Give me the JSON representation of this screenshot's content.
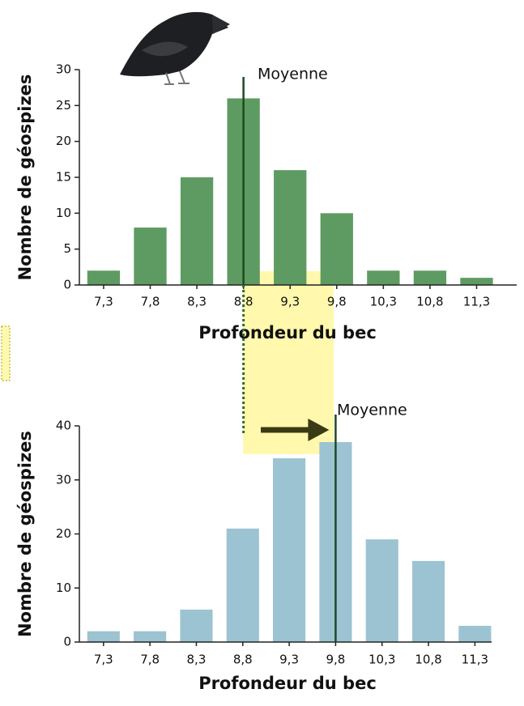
{
  "chart_data": [
    {
      "type": "bar",
      "y_label": "Nombre de géospizes",
      "x_label": "Profondeur du bec",
      "x": [
        7.3,
        7.8,
        8.3,
        8.8,
        9.3,
        9.8,
        10.3,
        10.8,
        11.3
      ],
      "values": [
        2,
        8,
        15,
        26,
        16,
        10,
        2,
        2,
        1
      ],
      "color": "#5e9b62",
      "xlim": [
        7.04,
        11.73
      ],
      "xticks": [
        {
          "value": 7.3,
          "label": "7,3"
        },
        {
          "value": 7.8,
          "label": "7,8"
        },
        {
          "value": 8.3,
          "label": "8,3"
        },
        {
          "value": 8.8,
          "label": "8,8"
        },
        {
          "value": 9.3,
          "label": "9,3"
        },
        {
          "value": 9.8,
          "label": "9,8"
        },
        {
          "value": 10.3,
          "label": "10,3"
        },
        {
          "value": 10.8,
          "label": "10,8"
        },
        {
          "value": 11.3,
          "label": "11,3"
        }
      ],
      "ylim": [
        0,
        30
      ],
      "yticks": [
        0,
        5,
        10,
        15,
        20,
        25,
        30
      ],
      "mean": {
        "label": "Moyenne",
        "x": 8.8
      }
    },
    {
      "type": "bar",
      "y_label": "Nombre de géospizes",
      "x_label": "Profondeur du bec",
      "x": [
        7.3,
        7.8,
        8.3,
        8.8,
        9.3,
        9.8,
        10.3,
        10.8,
        11.3
      ],
      "values": [
        2,
        2,
        6,
        21,
        34,
        37,
        19,
        15,
        3
      ],
      "color": "#9cc3d2",
      "xlim": [
        7.04,
        11.48
      ],
      "xticks": [
        {
          "value": 7.3,
          "label": "7,3"
        },
        {
          "value": 7.8,
          "label": "7,8"
        },
        {
          "value": 8.3,
          "label": "8,3"
        },
        {
          "value": 8.8,
          "label": "8,8"
        },
        {
          "value": 9.3,
          "label": "9,3"
        },
        {
          "value": 9.8,
          "label": "9,8"
        },
        {
          "value": 10.3,
          "label": "10,3"
        },
        {
          "value": 10.8,
          "label": "10,8"
        },
        {
          "value": 11.3,
          "label": "11,3"
        }
      ],
      "ylim": [
        0,
        40
      ],
      "yticks": [
        0,
        10,
        20,
        30,
        40
      ],
      "mean": {
        "label": "Moyenne",
        "x": 9.8
      }
    }
  ]
}
